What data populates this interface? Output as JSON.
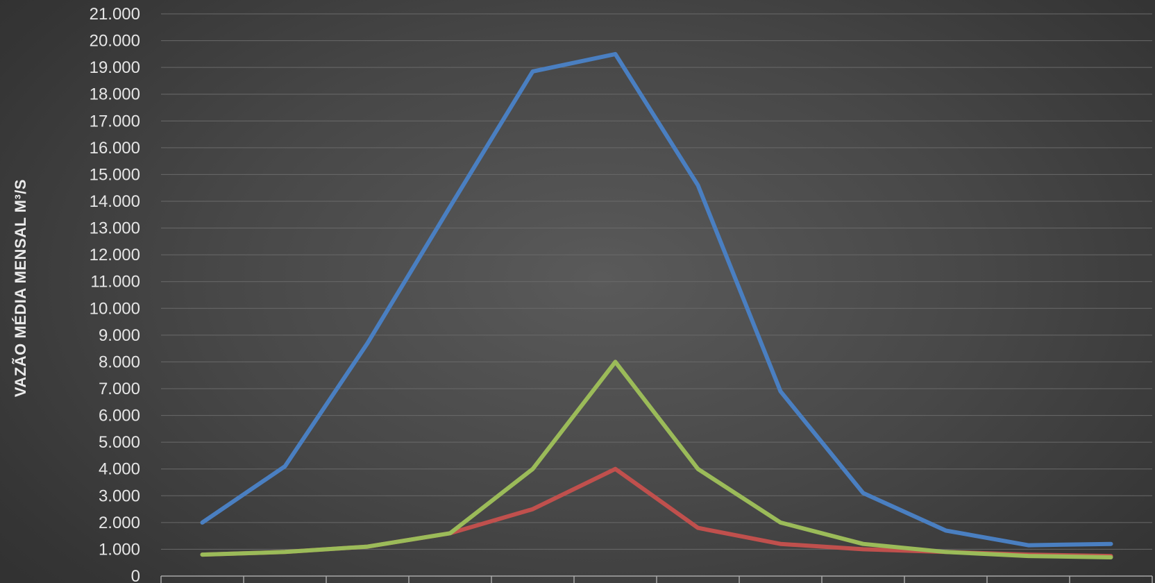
{
  "chart_data": {
    "type": "line",
    "title": "",
    "xlabel": "",
    "ylabel": "VAZÃO MÉDIA MENSAL M³/S",
    "ylim": [
      0,
      21000
    ],
    "ytick_step": 1000,
    "ytick_labels": [
      "0",
      "1.000",
      "2.000",
      "3.000",
      "4.000",
      "5.000",
      "6.000",
      "7.000",
      "8.000",
      "9.000",
      "10.000",
      "11.000",
      "12.000",
      "13.000",
      "14.000",
      "15.000",
      "16.000",
      "17.000",
      "18.000",
      "19.000",
      "20.000",
      "21.000"
    ],
    "x": [
      1,
      2,
      3,
      4,
      5,
      6,
      7,
      8,
      9,
      10,
      11,
      12
    ],
    "grid": true,
    "legend": "none",
    "series": [
      {
        "color": "#4a7fc1",
        "values": [
          2000,
          4100,
          8700,
          13800,
          18850,
          19500,
          14600,
          6900,
          3100,
          1700,
          1150,
          1200
        ]
      },
      {
        "color": "#c0504d",
        "values": [
          800,
          900,
          1100,
          1600,
          2500,
          4000,
          1800,
          1200,
          1000,
          900,
          800,
          750
        ]
      },
      {
        "color": "#9bbb59",
        "values": [
          800,
          900,
          1100,
          1600,
          4000,
          8000,
          4000,
          2000,
          1200,
          900,
          750,
          700
        ]
      }
    ]
  }
}
